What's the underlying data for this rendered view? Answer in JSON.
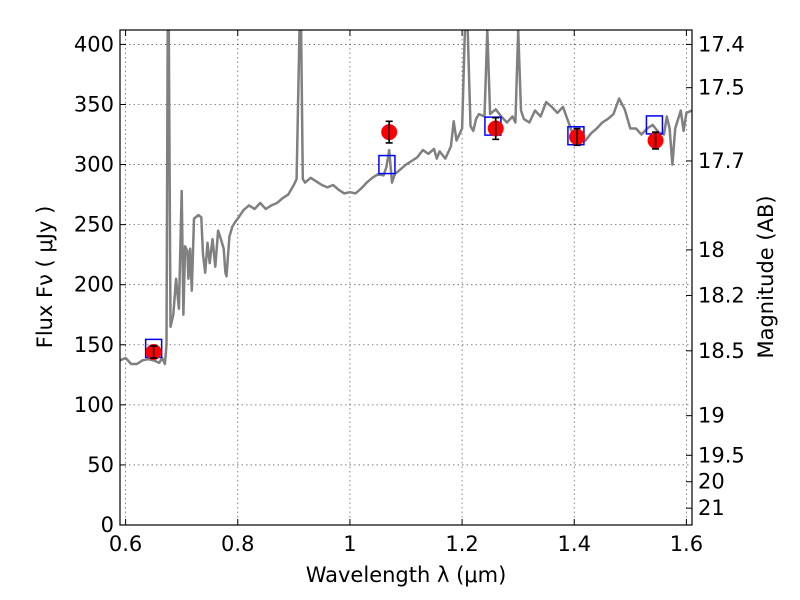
{
  "chart_data": {
    "type": "scatter",
    "title": "",
    "xlabel": "Wavelength  λ (μm)",
    "ylabel": "Flux  Fν  ( μJy )",
    "ylabel_right": "Magnitude (AB)",
    "xlim": [
      0.59,
      1.61
    ],
    "ylim": [
      0,
      412
    ],
    "grid": true,
    "x_ticks": [
      0.6,
      0.8,
      1.0,
      1.2,
      1.4,
      1.6
    ],
    "x_tick_labels": [
      "0.6",
      "0.8",
      "1",
      "1.2",
      "1.4",
      "1.6"
    ],
    "y_ticks": [
      0,
      50,
      100,
      150,
      200,
      250,
      300,
      350,
      400
    ],
    "y_tick_labels": [
      "0",
      "50",
      "100",
      "150",
      "200",
      "250",
      "300",
      "350",
      "400"
    ],
    "mag_ticks": [
      {
        "label": "17.4",
        "flux": 400
      },
      {
        "label": "17.5",
        "flux": 364
      },
      {
        "label": "17.7",
        "flux": 303
      },
      {
        "label": "18",
        "flux": 229
      },
      {
        "label": "18.2",
        "flux": 191
      },
      {
        "label": "18.5",
        "flux": 145
      },
      {
        "label": "19",
        "flux": 91
      },
      {
        "label": "19.5",
        "flux": 58
      },
      {
        "label": "20",
        "flux": 36
      },
      {
        "label": "21",
        "flux": 14
      }
    ],
    "series": [
      {
        "kind": "model-spectrum",
        "color": "#808080",
        "points": [
          [
            0.59,
            137
          ],
          [
            0.6,
            139
          ],
          [
            0.61,
            134
          ],
          [
            0.62,
            134
          ],
          [
            0.63,
            137
          ],
          [
            0.64,
            138
          ],
          [
            0.65,
            137
          ],
          [
            0.66,
            135
          ],
          [
            0.665,
            139
          ],
          [
            0.67,
            134
          ],
          [
            0.673,
            150
          ],
          [
            0.675,
            412
          ],
          [
            0.677,
            412
          ],
          [
            0.68,
            165
          ],
          [
            0.685,
            175
          ],
          [
            0.69,
            205
          ],
          [
            0.695,
            180
          ],
          [
            0.7,
            278
          ],
          [
            0.703,
            175
          ],
          [
            0.706,
            232
          ],
          [
            0.71,
            228
          ],
          [
            0.712,
            205
          ],
          [
            0.715,
            230
          ],
          [
            0.718,
            195
          ],
          [
            0.722,
            255
          ],
          [
            0.73,
            258
          ],
          [
            0.735,
            256
          ],
          [
            0.738,
            225
          ],
          [
            0.742,
            210
          ],
          [
            0.746,
            235
          ],
          [
            0.75,
            218
          ],
          [
            0.755,
            238
          ],
          [
            0.76,
            215
          ],
          [
            0.765,
            245
          ],
          [
            0.77,
            238
          ],
          [
            0.775,
            230
          ],
          [
            0.778,
            210
          ],
          [
            0.78,
            207
          ],
          [
            0.785,
            240
          ],
          [
            0.79,
            248
          ],
          [
            0.795,
            252
          ],
          [
            0.8,
            255
          ],
          [
            0.81,
            262
          ],
          [
            0.82,
            266
          ],
          [
            0.83,
            263
          ],
          [
            0.84,
            268
          ],
          [
            0.85,
            263
          ],
          [
            0.86,
            266
          ],
          [
            0.87,
            268
          ],
          [
            0.88,
            272
          ],
          [
            0.89,
            275
          ],
          [
            0.9,
            283
          ],
          [
            0.905,
            288
          ],
          [
            0.91,
            412
          ],
          [
            0.913,
            412
          ],
          [
            0.916,
            288
          ],
          [
            0.92,
            285
          ],
          [
            0.93,
            289
          ],
          [
            0.94,
            286
          ],
          [
            0.95,
            283
          ],
          [
            0.96,
            281
          ],
          [
            0.97,
            283
          ],
          [
            0.98,
            279
          ],
          [
            0.99,
            276
          ],
          [
            1.0,
            277
          ],
          [
            1.01,
            276
          ],
          [
            1.02,
            280
          ],
          [
            1.03,
            285
          ],
          [
            1.04,
            289
          ],
          [
            1.05,
            292
          ],
          [
            1.06,
            291
          ],
          [
            1.065,
            298
          ],
          [
            1.07,
            312
          ],
          [
            1.075,
            285
          ],
          [
            1.08,
            292
          ],
          [
            1.09,
            296
          ],
          [
            1.1,
            300
          ],
          [
            1.11,
            303
          ],
          [
            1.12,
            306
          ],
          [
            1.13,
            312
          ],
          [
            1.14,
            309
          ],
          [
            1.15,
            313
          ],
          [
            1.155,
            305
          ],
          [
            1.16,
            311
          ],
          [
            1.17,
            305
          ],
          [
            1.18,
            315
          ],
          [
            1.185,
            336
          ],
          [
            1.19,
            320
          ],
          [
            1.2,
            330
          ],
          [
            1.205,
            412
          ],
          [
            1.21,
            412
          ],
          [
            1.215,
            332
          ],
          [
            1.22,
            328
          ],
          [
            1.225,
            338
          ],
          [
            1.23,
            342
          ],
          [
            1.24,
            340
          ],
          [
            1.245,
            412
          ],
          [
            1.25,
            342
          ],
          [
            1.26,
            346
          ],
          [
            1.27,
            340
          ],
          [
            1.28,
            335
          ],
          [
            1.29,
            340
          ],
          [
            1.295,
            335
          ],
          [
            1.3,
            412
          ],
          [
            1.305,
            345
          ],
          [
            1.31,
            338
          ],
          [
            1.32,
            335
          ],
          [
            1.33,
            345
          ],
          [
            1.34,
            340
          ],
          [
            1.35,
            352
          ],
          [
            1.36,
            348
          ],
          [
            1.37,
            343
          ],
          [
            1.38,
            348
          ],
          [
            1.39,
            335
          ],
          [
            1.4,
            322
          ],
          [
            1.41,
            325
          ],
          [
            1.42,
            320
          ],
          [
            1.43,
            326
          ],
          [
            1.44,
            330
          ],
          [
            1.45,
            335
          ],
          [
            1.46,
            338
          ],
          [
            1.47,
            342
          ],
          [
            1.48,
            355
          ],
          [
            1.49,
            346
          ],
          [
            1.5,
            330
          ],
          [
            1.51,
            330
          ],
          [
            1.52,
            325
          ],
          [
            1.53,
            330
          ],
          [
            1.54,
            333
          ],
          [
            1.55,
            327
          ],
          [
            1.56,
            325
          ],
          [
            1.565,
            340
          ],
          [
            1.57,
            330
          ],
          [
            1.575,
            300
          ],
          [
            1.58,
            330
          ],
          [
            1.59,
            345
          ],
          [
            1.595,
            328
          ],
          [
            1.6,
            343
          ],
          [
            1.61,
            345
          ]
        ]
      },
      {
        "kind": "observed-photometry",
        "color": "#ff0000",
        "points": [
          {
            "x": 0.65,
            "y": 144,
            "err": 5
          },
          {
            "x": 1.07,
            "y": 327,
            "err": 9
          },
          {
            "x": 1.26,
            "y": 330,
            "err": 9
          },
          {
            "x": 1.405,
            "y": 323,
            "err": 7
          },
          {
            "x": 1.545,
            "y": 320,
            "err": 7
          }
        ]
      },
      {
        "kind": "model-photometry",
        "color": "#0000ff",
        "points": [
          {
            "x": 0.65,
            "y": 147
          },
          {
            "x": 1.066,
            "y": 300
          },
          {
            "x": 1.255,
            "y": 332
          },
          {
            "x": 1.403,
            "y": 324
          },
          {
            "x": 1.543,
            "y": 333
          }
        ]
      }
    ]
  }
}
